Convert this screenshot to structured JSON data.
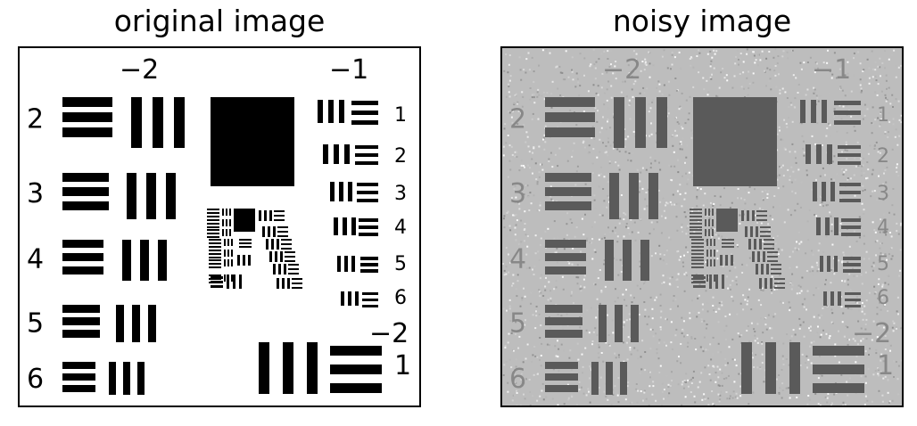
{
  "panels": [
    {
      "title": "original image",
      "noisy": false
    },
    {
      "title": "noisy image",
      "noisy": true
    }
  ],
  "target": {
    "group_labels": [
      "−2",
      "−1",
      "−2"
    ],
    "element_labels_left": [
      "2",
      "3",
      "4",
      "5",
      "6"
    ],
    "element_labels_right": [
      "1",
      "2",
      "3",
      "4",
      "5",
      "6"
    ],
    "bottom_element_label": "1"
  },
  "colors": {
    "ink_original": "#000000",
    "ink_noisy": "#5a5a5a",
    "paper_noisy": "#bdbdbd"
  }
}
